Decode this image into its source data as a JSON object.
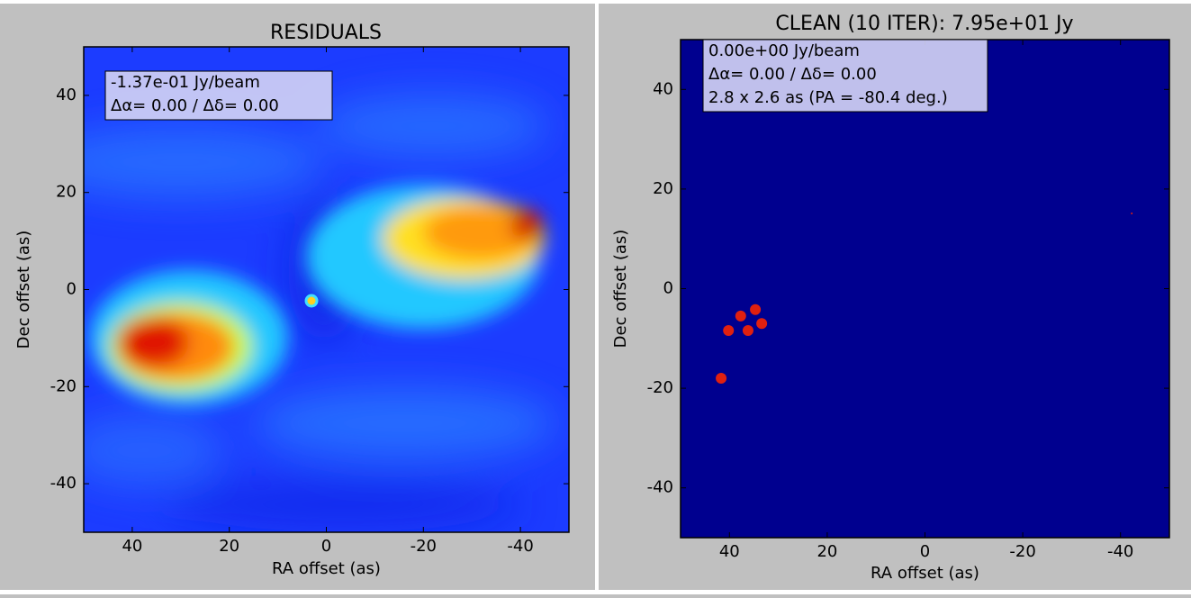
{
  "chart_data": [
    {
      "type": "image",
      "title": "RESIDUALS",
      "xlabel": "RA offset (as)",
      "ylabel": "Dec offset (as)",
      "xlim": [
        50,
        -50
      ],
      "ylim": [
        -50,
        50
      ],
      "xticks": [
        40,
        20,
        0,
        -20,
        -40
      ],
      "yticks": [
        -40,
        -20,
        0,
        20,
        40
      ],
      "annotations": [
        "-1.37e-01 Jy/beam",
        "Δα=  0.00 / Δδ=  0.00"
      ]
    },
    {
      "type": "scatter",
      "title": "CLEAN (10 ITER): 7.95e+01 Jy",
      "xlabel": "RA offset (as)",
      "ylabel": "Dec offset (as)",
      "xlim": [
        50,
        -50
      ],
      "ylim": [
        -50,
        50
      ],
      "xticks": [
        40,
        20,
        0,
        -20,
        -40
      ],
      "yticks": [
        -40,
        -20,
        0,
        20,
        40
      ],
      "annotations": [
        "0.00e+00 Jy/beam",
        "Δα=  0.00 / Δδ=  0.00",
        "2.8 x 2.6 as (PA = -80.4 deg.)"
      ],
      "color": "#e02010",
      "background": "#00008f",
      "x": [
        41.7,
        40.2,
        37.7,
        36.2,
        34.7,
        33.4,
        -42.3
      ],
      "y": [
        -18.0,
        -8.4,
        -5.5,
        -8.4,
        -4.2,
        -7.0,
        15.1
      ],
      "sizes": [
        6,
        6,
        6,
        6,
        6,
        6,
        1
      ]
    }
  ]
}
